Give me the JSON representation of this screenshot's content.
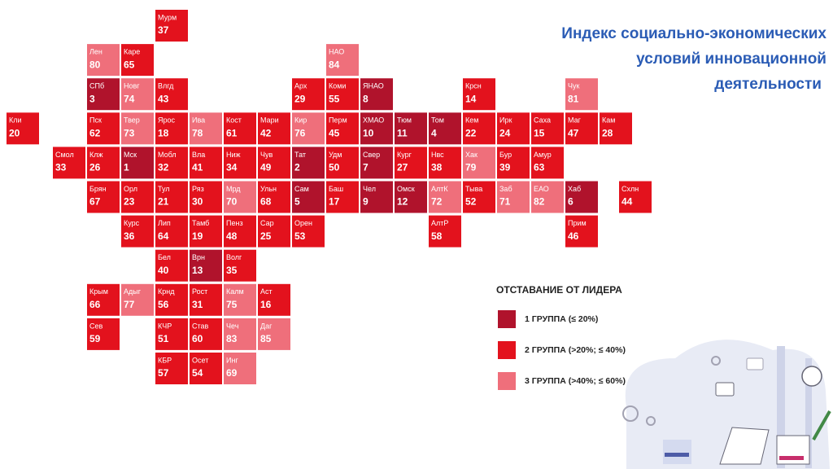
{
  "title": [
    "Индекс социально-экономических",
    "условий инновационной",
    "деятельности"
  ],
  "tiles": [
    {
      "label": "Мурм",
      "value": 37,
      "color": "#e3121d"
    },
    {
      "label": "Лен",
      "value": 80,
      "color": "#ef6f7b"
    },
    {
      "label": "Каре",
      "value": 65,
      "color": "#e3121d"
    },
    {
      "label": "НАО",
      "value": 84,
      "color": "#ef6f7b"
    },
    {
      "label": "СПб",
      "value": 3,
      "color": "#b0132c"
    },
    {
      "label": "Новг",
      "value": 74,
      "color": "#ef6f7b"
    },
    {
      "label": "Влгд",
      "value": 43,
      "color": "#e3121d"
    },
    {
      "label": "Арх",
      "value": 29,
      "color": "#e3121d"
    },
    {
      "label": "Коми",
      "value": 55,
      "color": "#e3121d"
    },
    {
      "label": "ЯНАО",
      "value": 8,
      "color": "#b0132c"
    },
    {
      "label": "Крсн",
      "value": 14,
      "color": "#e3121d"
    },
    {
      "label": "Чук",
      "value": 81,
      "color": "#ef6f7b"
    },
    {
      "label": "Кли",
      "value": 20,
      "color": "#e3121d"
    },
    {
      "label": "Пск",
      "value": 62,
      "color": "#e3121d"
    },
    {
      "label": "Твер",
      "value": 73,
      "color": "#ef6f7b"
    },
    {
      "label": "Ярос",
      "value": 18,
      "color": "#e3121d"
    },
    {
      "label": "Ива",
      "value": 78,
      "color": "#ef6f7b"
    },
    {
      "label": "Кост",
      "value": 61,
      "color": "#e3121d"
    },
    {
      "label": "Мари",
      "value": 42,
      "color": "#e3121d"
    },
    {
      "label": "Кир",
      "value": 76,
      "color": "#ef6f7b"
    },
    {
      "label": "Перм",
      "value": 45,
      "color": "#e3121d"
    },
    {
      "label": "ХМАО",
      "value": 10,
      "color": "#b0132c"
    },
    {
      "label": "Тюм",
      "value": 11,
      "color": "#b0132c"
    },
    {
      "label": "Том",
      "value": 4,
      "color": "#b0132c"
    },
    {
      "label": "Кем",
      "value": 22,
      "color": "#e3121d"
    },
    {
      "label": "Ирк",
      "value": 24,
      "color": "#e3121d"
    },
    {
      "label": "Саха",
      "value": 15,
      "color": "#e3121d"
    },
    {
      "label": "Маг",
      "value": 47,
      "color": "#e3121d"
    },
    {
      "label": "Кам",
      "value": 28,
      "color": "#e3121d"
    },
    {
      "label": "Смол",
      "value": 33,
      "color": "#e3121d"
    },
    {
      "label": "Клж",
      "value": 26,
      "color": "#e3121d"
    },
    {
      "label": "Мск",
      "value": 1,
      "color": "#b0132c"
    },
    {
      "label": "Мобл",
      "value": 32,
      "color": "#e3121d"
    },
    {
      "label": "Вла",
      "value": 41,
      "color": "#e3121d"
    },
    {
      "label": "Ниж",
      "value": 34,
      "color": "#e3121d"
    },
    {
      "label": "Чув",
      "value": 49,
      "color": "#e3121d"
    },
    {
      "label": "Тат",
      "value": 2,
      "color": "#b0132c"
    },
    {
      "label": "Удм",
      "value": 50,
      "color": "#e3121d"
    },
    {
      "label": "Свер",
      "value": 7,
      "color": "#b0132c"
    },
    {
      "label": "Кург",
      "value": 27,
      "color": "#e3121d"
    },
    {
      "label": "Нвс",
      "value": 38,
      "color": "#e3121d"
    },
    {
      "label": "Хак",
      "value": 79,
      "color": "#ef6f7b"
    },
    {
      "label": "Бур",
      "value": 39,
      "color": "#e3121d"
    },
    {
      "label": "Амур",
      "value": 63,
      "color": "#e3121d"
    },
    {
      "label": "Брян",
      "value": 67,
      "color": "#e3121d"
    },
    {
      "label": "Орл",
      "value": 23,
      "color": "#e3121d"
    },
    {
      "label": "Тул",
      "value": 21,
      "color": "#e3121d"
    },
    {
      "label": "Ряз",
      "value": 30,
      "color": "#e3121d"
    },
    {
      "label": "Мрд",
      "value": 70,
      "color": "#ef6f7b"
    },
    {
      "label": "Ульн",
      "value": 68,
      "color": "#e3121d"
    },
    {
      "label": "Сам",
      "value": 5,
      "color": "#b0132c"
    },
    {
      "label": "Баш",
      "value": 17,
      "color": "#e3121d"
    },
    {
      "label": "Чел",
      "value": 9,
      "color": "#b0132c"
    },
    {
      "label": "Омск",
      "value": 12,
      "color": "#b0132c"
    },
    {
      "label": "АлтК",
      "value": 72,
      "color": "#ef6f7b"
    },
    {
      "label": "Тыва",
      "value": 52,
      "color": "#e3121d"
    },
    {
      "label": "Заб",
      "value": 71,
      "color": "#ef6f7b"
    },
    {
      "label": "ЕАО",
      "value": 82,
      "color": "#ef6f7b"
    },
    {
      "label": "Хаб",
      "value": 6,
      "color": "#b0132c"
    },
    {
      "label": "Схлн",
      "value": 44,
      "color": "#e3121d"
    },
    {
      "label": "Курс",
      "value": 36,
      "color": "#e3121d"
    },
    {
      "label": "Лип",
      "value": 64,
      "color": "#e3121d"
    },
    {
      "label": "Тамб",
      "value": 19,
      "color": "#e3121d"
    },
    {
      "label": "Пенз",
      "value": 48,
      "color": "#e3121d"
    },
    {
      "label": "Сар",
      "value": 25,
      "color": "#e3121d"
    },
    {
      "label": "Орен",
      "value": 53,
      "color": "#e3121d"
    },
    {
      "label": "АлтР",
      "value": 58,
      "color": "#e3121d"
    },
    {
      "label": "Прим",
      "value": 46,
      "color": "#e3121d"
    },
    {
      "label": "Бел",
      "value": 40,
      "color": "#e3121d"
    },
    {
      "label": "Врн",
      "value": 13,
      "color": "#b0132c"
    },
    {
      "label": "Волг",
      "value": 35,
      "color": "#e3121d"
    },
    {
      "label": "Крым",
      "value": 66,
      "color": "#e3121d"
    },
    {
      "label": "Адыг",
      "value": 77,
      "color": "#ef6f7b"
    },
    {
      "label": "Крнд",
      "value": 56,
      "color": "#e3121d"
    },
    {
      "label": "Рост",
      "value": 31,
      "color": "#e3121d"
    },
    {
      "label": "Калм",
      "value": 75,
      "color": "#ef6f7b"
    },
    {
      "label": "Аст",
      "value": 16,
      "color": "#e3121d"
    },
    {
      "label": "Сев",
      "value": 59,
      "color": "#e3121d"
    },
    {
      "label": "КЧР",
      "value": 51,
      "color": "#e3121d"
    },
    {
      "label": "Став",
      "value": 60,
      "color": "#e3121d"
    },
    {
      "label": "Чеч",
      "value": 83,
      "color": "#ef6f7b"
    },
    {
      "label": "Даг",
      "value": 85,
      "color": "#ef6f7b"
    },
    {
      "label": "КБР",
      "value": 57,
      "color": "#e3121d"
    },
    {
      "label": "Осет",
      "value": 54,
      "color": "#e3121d"
    },
    {
      "label": "Инг",
      "value": 69,
      "color": "#ef6f7b"
    }
  ],
  "legend": {
    "title": "ОТСТАВАНИЕ ОТ ЛИДЕРА",
    "items": [
      {
        "label": "1 ГРУППА (≤ 20%)",
        "color": "#b0132c"
      },
      {
        "label": "2 ГРУППА (>20%; ≤ 40%)",
        "color": "#e3121d"
      },
      {
        "label": "3 ГРУППА (>40%; ≤ 60%)",
        "color": "#ef6f7b"
      }
    ]
  }
}
